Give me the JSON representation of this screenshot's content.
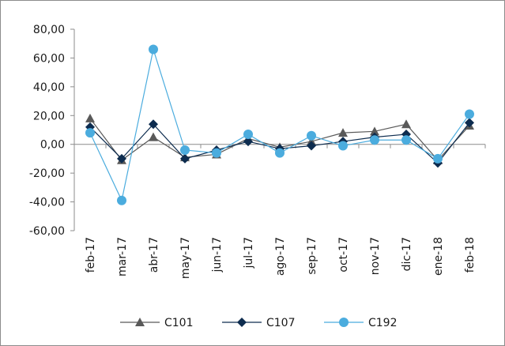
{
  "chart_data": {
    "type": "line",
    "title": "",
    "xlabel": "",
    "ylabel": "",
    "ylim": [
      -60,
      80
    ],
    "yticks": [
      80,
      60,
      40,
      20,
      0,
      -20,
      -40,
      -60
    ],
    "ytick_labels": [
      "80,00",
      "60,00",
      "40,00",
      "20,00",
      "0,00",
      "-20,00",
      "-40,00",
      "-60,00"
    ],
    "categories": [
      "feb-17",
      "mar-17",
      "abr-17",
      "may-17",
      "jun-17",
      "jul-17",
      "ago-17",
      "sep-17",
      "oct-17",
      "nov-17",
      "dic-17",
      "ene-18",
      "feb-18"
    ],
    "grid": false,
    "legend_position": "bottom",
    "series": [
      {
        "name": "C101",
        "color": "#595959",
        "marker": "triangle",
        "values": [
          18,
          -11,
          5,
          -9,
          -7,
          4,
          -2,
          2,
          8,
          9,
          14,
          -11,
          13
        ]
      },
      {
        "name": "C107",
        "color": "#0d2c4f",
        "marker": "diamond",
        "values": [
          12,
          -10,
          14,
          -10,
          -4,
          2,
          -3,
          -1,
          2,
          5,
          7,
          -13,
          15
        ]
      },
      {
        "name": "C192",
        "color": "#4bacde",
        "marker": "circle",
        "values": [
          8,
          -39,
          66,
          -4,
          -6,
          7,
          -6,
          6,
          -1,
          3,
          3,
          -10,
          21
        ]
      }
    ]
  }
}
